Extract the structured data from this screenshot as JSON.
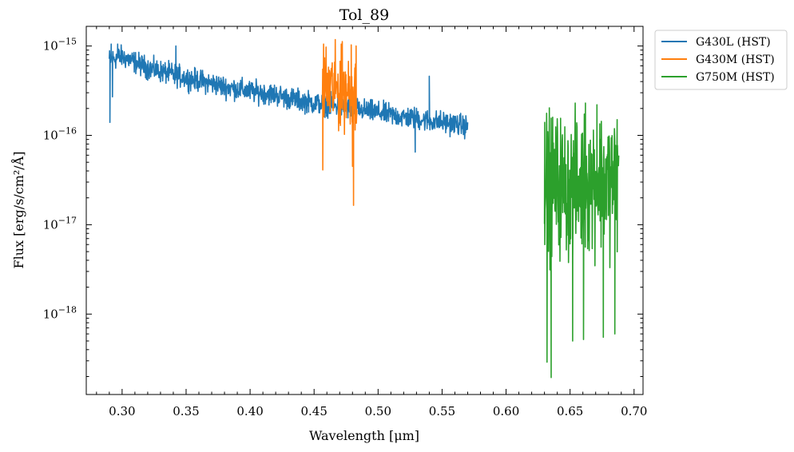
{
  "chart_data": {
    "type": "line",
    "title": "Tol_89",
    "xlabel": "Wavelength [μm]",
    "ylabel": "Flux [erg/s/cm²/Å]",
    "yscale": "log",
    "xlim": [
      0.272,
      0.707
    ],
    "ylim_log10": [
      -18.9,
      -14.78
    ],
    "x_ticks": [
      0.3,
      0.35,
      0.4,
      0.45,
      0.5,
      0.55,
      0.6,
      0.65,
      0.7
    ],
    "x_tick_labels": [
      "0.30",
      "0.35",
      "0.40",
      "0.45",
      "0.50",
      "0.55",
      "0.60",
      "0.65",
      "0.70"
    ],
    "y_ticks": [
      {
        "exp": -15,
        "label_base": "10",
        "label_exp": "−15"
      },
      {
        "exp": -16,
        "label_base": "10",
        "label_exp": "−16"
      },
      {
        "exp": -17,
        "label_base": "10",
        "label_exp": "−17"
      },
      {
        "exp": -18,
        "label_base": "10",
        "label_exp": "−18"
      }
    ],
    "legend_position": "outside-top-right",
    "series": [
      {
        "name": "G430L (HST)",
        "color": "#1f77b4",
        "x": [
          0.29,
          0.3,
          0.31,
          0.32,
          0.33,
          0.34,
          0.35,
          0.36,
          0.37,
          0.38,
          0.39,
          0.4,
          0.41,
          0.42,
          0.43,
          0.44,
          0.45,
          0.456,
          0.484,
          0.49,
          0.5,
          0.51,
          0.52,
          0.53,
          0.54,
          0.55,
          0.56,
          0.57
        ],
        "values": [
          7e-16,
          7.6e-16,
          6.6e-16,
          5.7e-16,
          5.2e-16,
          4.8e-16,
          4.4e-16,
          4.1e-16,
          3.8e-16,
          3.5e-16,
          3.3e-16,
          3.1e-16,
          3e-16,
          2.85e-16,
          2.6e-16,
          2.45e-16,
          2.3e-16,
          2.25e-16,
          1.95e-16,
          1.9e-16,
          1.8e-16,
          1.7e-16,
          1.6e-16,
          1.55e-16,
          1.45e-16,
          1.4e-16,
          1.35e-16,
          1.25e-16
        ],
        "noise_dex": 0.06,
        "spikes": [
          {
            "x": 0.2905,
            "value": 1.4e-16
          },
          {
            "x": 0.2915,
            "value": 1.05e-15
          },
          {
            "x": 0.2925,
            "value": 2.7e-16
          },
          {
            "x": 0.2965,
            "value": 1.05e-15
          },
          {
            "x": 0.342,
            "value": 1e-15
          },
          {
            "x": 0.341,
            "value": 3.8e-16
          },
          {
            "x": 0.529,
            "value": 6.5e-17
          },
          {
            "x": 0.54,
            "value": 4.6e-16
          }
        ]
      },
      {
        "name": "G430M (HST)",
        "color": "#ff7f0e",
        "x": [
          0.4565,
          0.46,
          0.465,
          0.47,
          0.475,
          0.48,
          0.4835
        ],
        "values": [
          3.2e-16,
          3.5e-16,
          3.3e-16,
          3.2e-16,
          3.4e-16,
          3e-16,
          2.8e-16
        ],
        "noise_dex": 0.22,
        "spikes": [
          {
            "x": 0.4568,
            "value": 4.1e-17
          },
          {
            "x": 0.4574,
            "value": 1.05e-15
          },
          {
            "x": 0.4712,
            "value": 1.05e-15
          },
          {
            "x": 0.479,
            "value": 1.03e-15
          },
          {
            "x": 0.48,
            "value": 4.5e-17
          },
          {
            "x": 0.4808,
            "value": 1.65e-17
          },
          {
            "x": 0.4828,
            "value": 1e-15
          }
        ]
      },
      {
        "name": "G750M (HST)",
        "color": "#2ca02c",
        "x": [
          0.63,
          0.64,
          0.65,
          0.66,
          0.67,
          0.68,
          0.688
        ],
        "values": [
          3e-17,
          2.8e-17,
          2.5e-17,
          2.8e-17,
          3.2e-17,
          3e-17,
          3.2e-17
        ],
        "noise_dex": 0.38,
        "spikes": [
          {
            "x": 0.6302,
            "value": 1.4e-16
          },
          {
            "x": 0.632,
            "value": 2.9e-19
          },
          {
            "x": 0.6352,
            "value": 1.95e-19
          },
          {
            "x": 0.652,
            "value": 5e-19
          },
          {
            "x": 0.6605,
            "value": 5.2e-19
          },
          {
            "x": 0.662,
            "value": 2.3e-16
          },
          {
            "x": 0.671,
            "value": 2.2e-16
          },
          {
            "x": 0.676,
            "value": 5.5e-19
          },
          {
            "x": 0.685,
            "value": 6e-19
          },
          {
            "x": 0.6868,
            "value": 1.5e-16
          }
        ]
      }
    ]
  }
}
